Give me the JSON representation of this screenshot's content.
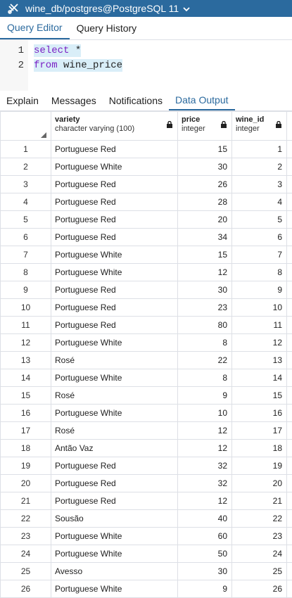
{
  "topbar": {
    "db_label": "wine_db/postgres@PostgreSQL 11"
  },
  "editor_tabs": [
    {
      "label": "Query Editor",
      "active": true
    },
    {
      "label": "Query History",
      "active": false
    }
  ],
  "editor": {
    "lines": [
      {
        "num": "1",
        "kw": "select",
        "rest": " *"
      },
      {
        "num": "2",
        "kw": "from",
        "rest": " wine_price"
      }
    ]
  },
  "output_tabs": [
    {
      "label": "Explain",
      "active": false
    },
    {
      "label": "Messages",
      "active": false
    },
    {
      "label": "Notifications",
      "active": false
    },
    {
      "label": "Data Output",
      "active": true
    }
  ],
  "grid": {
    "columns": [
      {
        "name": "variety",
        "type": "character varying (100)"
      },
      {
        "name": "price",
        "type": "integer"
      },
      {
        "name": "wine_id",
        "type": "integer"
      }
    ],
    "rows": [
      [
        "1",
        "Portuguese Red",
        "15",
        "1"
      ],
      [
        "2",
        "Portuguese White",
        "30",
        "2"
      ],
      [
        "3",
        "Portuguese Red",
        "26",
        "3"
      ],
      [
        "4",
        "Portuguese Red",
        "28",
        "4"
      ],
      [
        "5",
        "Portuguese Red",
        "20",
        "5"
      ],
      [
        "6",
        "Portuguese Red",
        "34",
        "6"
      ],
      [
        "7",
        "Portuguese White",
        "15",
        "7"
      ],
      [
        "8",
        "Portuguese White",
        "12",
        "8"
      ],
      [
        "9",
        "Portuguese Red",
        "30",
        "9"
      ],
      [
        "10",
        "Portuguese Red",
        "23",
        "10"
      ],
      [
        "11",
        "Portuguese Red",
        "80",
        "11"
      ],
      [
        "12",
        "Portuguese White",
        "8",
        "12"
      ],
      [
        "13",
        "Rosé",
        "22",
        "13"
      ],
      [
        "14",
        "Portuguese White",
        "8",
        "14"
      ],
      [
        "15",
        "Rosé",
        "9",
        "15"
      ],
      [
        "16",
        "Portuguese White",
        "10",
        "16"
      ],
      [
        "17",
        "Rosé",
        "12",
        "17"
      ],
      [
        "18",
        "Antão Vaz",
        "12",
        "18"
      ],
      [
        "19",
        "Portuguese Red",
        "32",
        "19"
      ],
      [
        "20",
        "Portuguese Red",
        "32",
        "20"
      ],
      [
        "21",
        "Portuguese Red",
        "12",
        "21"
      ],
      [
        "22",
        "Sousão",
        "40",
        "22"
      ],
      [
        "23",
        "Portuguese White",
        "60",
        "23"
      ],
      [
        "24",
        "Portuguese White",
        "50",
        "24"
      ],
      [
        "25",
        "Avesso",
        "30",
        "25"
      ],
      [
        "26",
        "Portuguese White",
        "9",
        "26"
      ]
    ]
  }
}
